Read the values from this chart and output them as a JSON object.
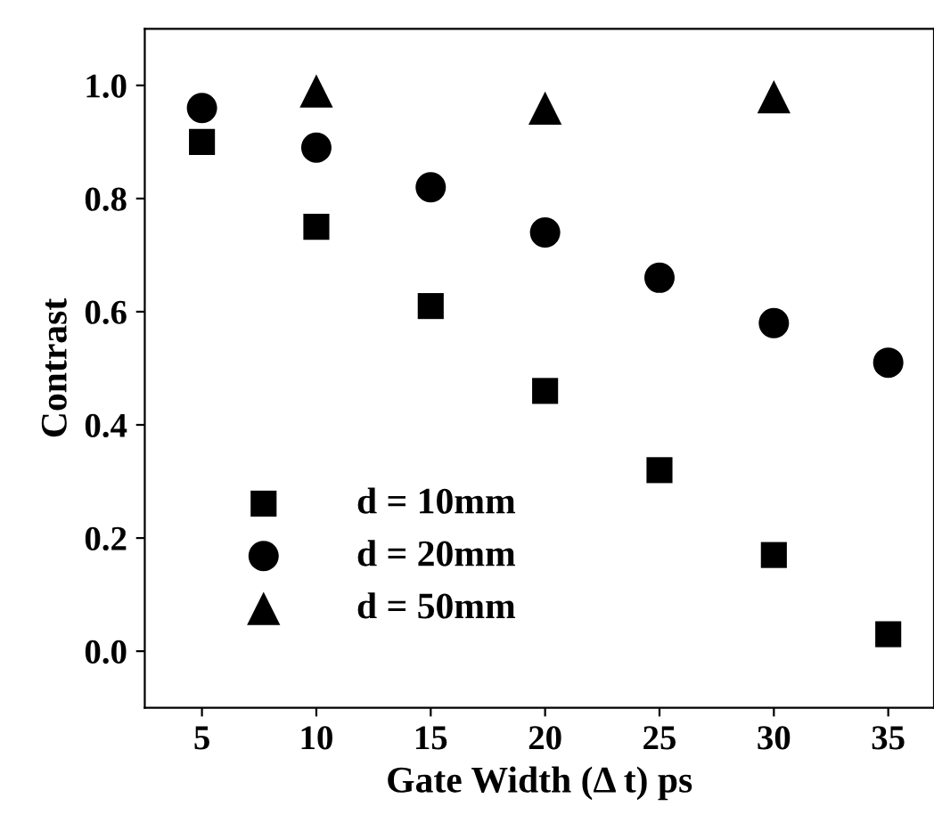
{
  "chart_data": {
    "type": "scatter",
    "xlabel": "Gate Width (Δ t) ps",
    "ylabel": "Contrast",
    "x": [
      5,
      10,
      15,
      20,
      25,
      30,
      35
    ],
    "series": [
      {
        "name": "d = 10mm",
        "color": "#000000",
        "marker": "square",
        "values": [
          0.9,
          0.75,
          0.61,
          0.46,
          0.32,
          0.17,
          0.03
        ]
      },
      {
        "name": "d = 20mm",
        "color": "#000000",
        "marker": "circle",
        "values": [
          0.96,
          0.89,
          0.82,
          0.74,
          0.66,
          0.58,
          0.51
        ]
      },
      {
        "name": "d = 50mm",
        "color": "#000000",
        "marker": "triangle",
        "values": [
          null,
          0.99,
          null,
          0.96,
          null,
          0.98,
          null
        ]
      }
    ],
    "xlim": [
      2.5,
      37
    ],
    "ylim": [
      -0.1,
      1.1
    ],
    "xticks": [
      5,
      10,
      15,
      20,
      25,
      30,
      35
    ],
    "yticks": [
      {
        "value": 0.0,
        "label": "0.0"
      },
      {
        "value": 0.2,
        "label": "0.2"
      },
      {
        "value": 0.4,
        "label": "0.4"
      },
      {
        "value": 0.6,
        "label": "0.6"
      },
      {
        "value": 0.8,
        "label": "0.8"
      },
      {
        "value": 1.0,
        "label": "1.0"
      }
    ],
    "grid": false,
    "legend": "bottom left"
  }
}
